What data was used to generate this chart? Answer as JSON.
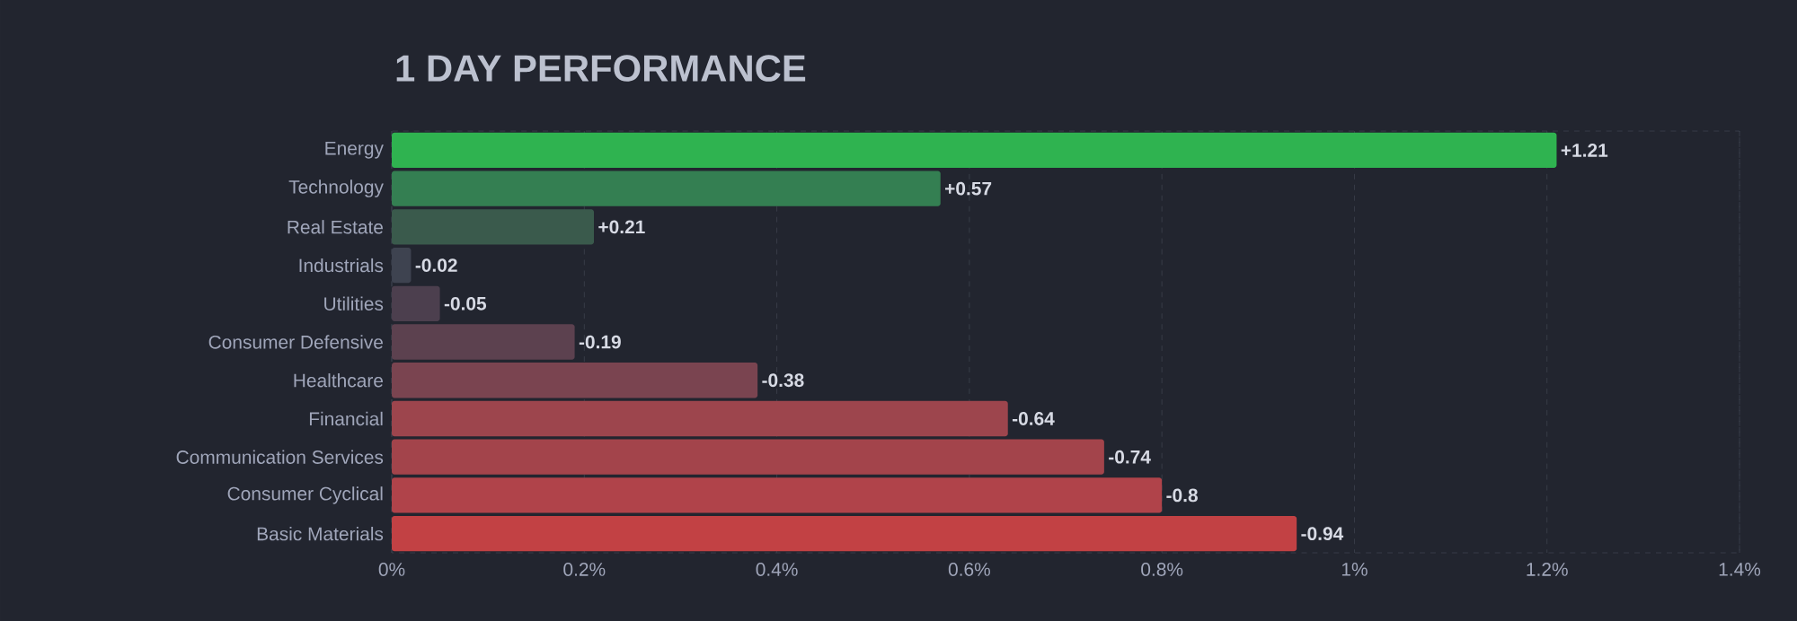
{
  "chart_data": {
    "type": "bar",
    "orientation": "horizontal",
    "title": "1 DAY PERFORMANCE",
    "categories": [
      "Energy",
      "Technology",
      "Real Estate",
      "Industrials",
      "Utilities",
      "Consumer Defensive",
      "Healthcare",
      "Financial",
      "Communication Services",
      "Consumer Cyclical",
      "Basic Materials"
    ],
    "values": [
      1.21,
      0.57,
      0.21,
      -0.02,
      -0.05,
      -0.19,
      -0.38,
      -0.64,
      -0.74,
      -0.8,
      -0.94
    ],
    "base": [
      0,
      0,
      0,
      0.02,
      0.05,
      0.19,
      0.38,
      0.64,
      0.74,
      0.8,
      0.94
    ],
    "value_labels": [
      "+1.21",
      "+0.57",
      "+0.21",
      "-0.02",
      "-0.05",
      "-0.19",
      "-0.38",
      "-0.64",
      "-0.74",
      "-0.8",
      "-0.94"
    ],
    "colors": [
      "#2fb350",
      "#347f52",
      "#3a5a4c",
      "#3e4350",
      "#4c3f4e",
      "#5c414f",
      "#7a4450",
      "#9d454d",
      "#a3444b",
      "#b0434a",
      "#c24144"
    ],
    "xlim": [
      0,
      1.4
    ],
    "xticks": [
      {
        "value": 0,
        "label": "0%"
      },
      {
        "value": 0.2,
        "label": "0.2%"
      },
      {
        "value": 0.4,
        "label": "0.4%"
      },
      {
        "value": 0.6,
        "label": "0.6%"
      },
      {
        "value": 0.8,
        "label": "0.8%"
      },
      {
        "value": 1,
        "label": "1%"
      },
      {
        "value": 1.2,
        "label": "1.2%"
      },
      {
        "value": 1.4,
        "label": "1.4%"
      }
    ],
    "grid": "x"
  }
}
